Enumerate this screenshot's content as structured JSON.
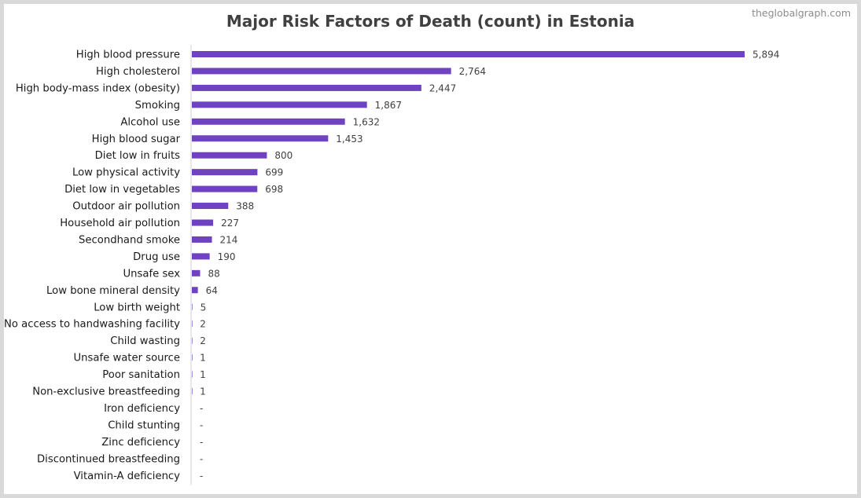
{
  "watermark": "theglobalgraph.com",
  "chart_data": {
    "type": "bar",
    "orientation": "horizontal",
    "title": "Major Risk Factors of Death (count) in Estonia",
    "bar_color": "#6f42c1",
    "categories": [
      "High blood pressure",
      "High cholesterol",
      "High body-mass index (obesity)",
      "Smoking",
      "Alcohol use",
      "High blood sugar",
      "Diet low in fruits",
      "Low physical activity",
      "Diet low in vegetables",
      "Outdoor air pollution",
      "Household air pollution",
      "Secondhand smoke",
      "Drug use",
      "Unsafe sex",
      "Low bone mineral density",
      "Low birth weight",
      "No access to handwashing facility",
      "Child wasting",
      "Unsafe water source",
      "Poor sanitation",
      "Non-exclusive breastfeeding",
      "Iron deficiency",
      "Child stunting",
      "Zinc deficiency",
      "Discontinued breastfeeding",
      "Vitamin-A deficiency"
    ],
    "values": [
      5894,
      2764,
      2447,
      1867,
      1632,
      1453,
      800,
      699,
      698,
      388,
      227,
      214,
      190,
      88,
      64,
      5,
      2,
      2,
      1,
      1,
      1,
      0,
      0,
      0,
      0,
      0
    ],
    "value_labels": [
      "5,894",
      "2,764",
      "2,447",
      "1,867",
      "1,632",
      "1,453",
      "800",
      "699",
      "698",
      "388",
      "227",
      "214",
      "190",
      "88",
      "64",
      "5",
      "2",
      "2",
      "1",
      "1",
      "1",
      "-",
      "-",
      "-",
      "-",
      "-"
    ],
    "xlim": [
      0,
      6000
    ],
    "grid": false,
    "legend": "none"
  }
}
